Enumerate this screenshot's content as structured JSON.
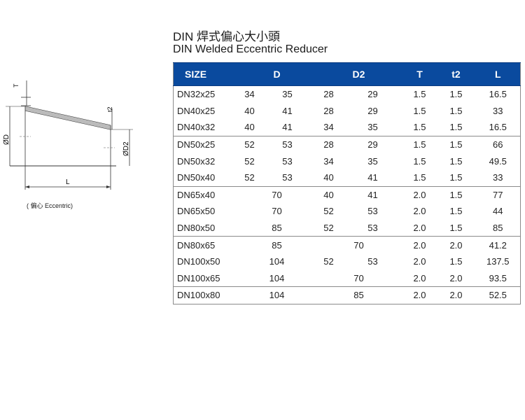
{
  "title_zh": "DIN 焊式偏心大小頭",
  "title_en": "DIN Welded Eccentric Reducer",
  "diagram": {
    "label_T": "T",
    "label_t2": "t2",
    "label_OD": "ØD",
    "label_OD2": "ØD2",
    "label_L": "L",
    "caption": "( 偏心   Eccentric)"
  },
  "table": {
    "headers": {
      "size": "SIZE",
      "d": "D",
      "d2": "D2",
      "t": "T",
      "t2": "t2",
      "l": "L"
    },
    "groups": [
      [
        {
          "size": "DN32x25",
          "d1": "34",
          "d2a": "35",
          "d2b": "28",
          "d2c": "29",
          "t": "1.5",
          "t2": "1.5",
          "l": "16.5"
        },
        {
          "size": "DN40x25",
          "d1": "40",
          "d2a": "41",
          "d2b": "28",
          "d2c": "29",
          "t": "1.5",
          "t2": "1.5",
          "l": "33"
        },
        {
          "size": "DN40x32",
          "d1": "40",
          "d2a": "41",
          "d2b": "34",
          "d2c": "35",
          "t": "1.5",
          "t2": "1.5",
          "l": "16.5"
        }
      ],
      [
        {
          "size": "DN50x25",
          "d1": "52",
          "d2a": "53",
          "d2b": "28",
          "d2c": "29",
          "t": "1.5",
          "t2": "1.5",
          "l": "66"
        },
        {
          "size": "DN50x32",
          "d1": "52",
          "d2a": "53",
          "d2b": "34",
          "d2c": "35",
          "t": "1.5",
          "t2": "1.5",
          "l": "49.5"
        },
        {
          "size": "DN50x40",
          "d1": "52",
          "d2a": "53",
          "d2b": "40",
          "d2c": "41",
          "t": "1.5",
          "t2": "1.5",
          "l": "33"
        }
      ],
      [
        {
          "size": "DN65x40",
          "d": "70",
          "d2b": "40",
          "d2c": "41",
          "t": "2.0",
          "t2": "1.5",
          "l": "77"
        },
        {
          "size": "DN65x50",
          "d": "70",
          "d2b": "52",
          "d2c": "53",
          "t": "2.0",
          "t2": "1.5",
          "l": "44"
        },
        {
          "size": "DN80x50",
          "d": "85",
          "d2b": "52",
          "d2c": "53",
          "t": "2.0",
          "t2": "1.5",
          "l": "85"
        }
      ],
      [
        {
          "size": "DN80x65",
          "d": "85",
          "d2": "70",
          "t": "2.0",
          "t2": "2.0",
          "l": "41.2"
        },
        {
          "size": "DN100x50",
          "d": "104",
          "d2b": "52",
          "d2c": "53",
          "t": "2.0",
          "t2": "1.5",
          "l": "137.5"
        },
        {
          "size": "DN100x65",
          "d": "104",
          "d2": "70",
          "t": "2.0",
          "t2": "2.0",
          "l": "93.5"
        }
      ],
      [
        {
          "size": "DN100x80",
          "d": "104",
          "d2": "85",
          "t": "2.0",
          "t2": "2.0",
          "l": "52.5"
        }
      ]
    ]
  }
}
